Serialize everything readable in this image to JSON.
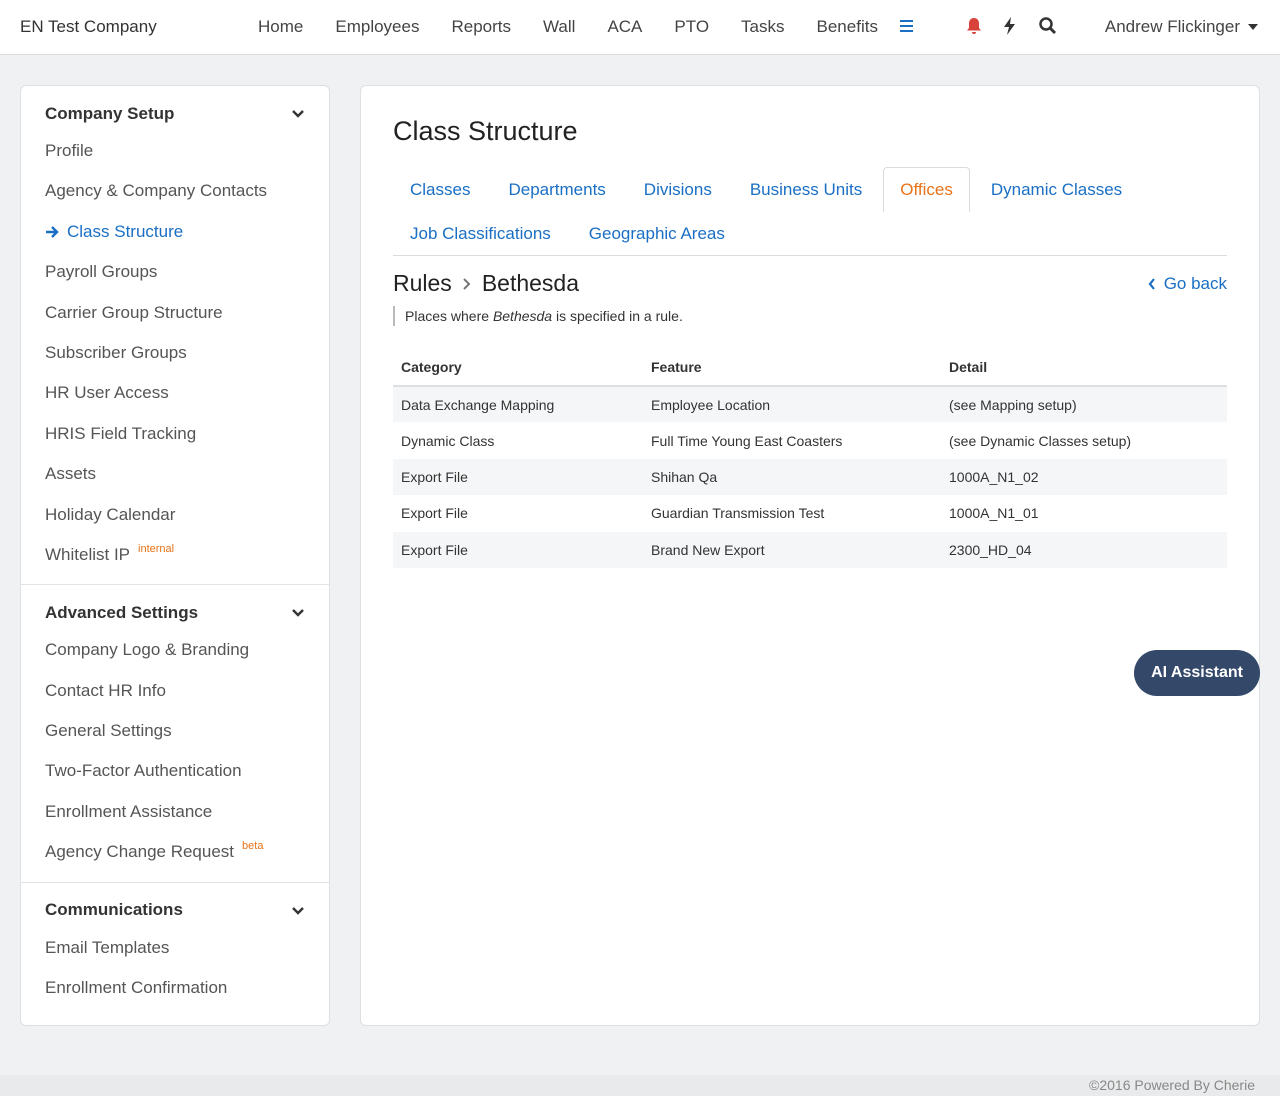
{
  "navbar": {
    "brand": "EN Test Company",
    "links": [
      "Home",
      "Employees",
      "Reports",
      "Wall",
      "ACA",
      "PTO",
      "Tasks",
      "Benefits"
    ],
    "user": "Andrew Flickinger"
  },
  "sidebar": {
    "sections": [
      {
        "title": "Company Setup",
        "items": [
          {
            "label": "Profile"
          },
          {
            "label": "Agency & Company Contacts"
          },
          {
            "label": "Class Structure",
            "active": true
          },
          {
            "label": "Payroll Groups"
          },
          {
            "label": "Carrier Group Structure"
          },
          {
            "label": "Subscriber Groups"
          },
          {
            "label": "HR User Access"
          },
          {
            "label": "HRIS Field Tracking"
          },
          {
            "label": "Assets"
          },
          {
            "label": "Holiday Calendar"
          },
          {
            "label": "Whitelist IP",
            "badge": "internal"
          }
        ]
      },
      {
        "title": "Advanced Settings",
        "items": [
          {
            "label": "Company Logo & Branding"
          },
          {
            "label": "Contact HR Info"
          },
          {
            "label": "General Settings"
          },
          {
            "label": "Two-Factor Authentication"
          },
          {
            "label": "Enrollment Assistance"
          },
          {
            "label": "Agency Change Request",
            "badge": "beta"
          }
        ]
      },
      {
        "title": "Communications",
        "items": [
          {
            "label": "Email Templates"
          },
          {
            "label": "Enrollment Confirmation"
          }
        ]
      }
    ]
  },
  "main": {
    "title": "Class Structure",
    "tabs": [
      {
        "label": "Classes"
      },
      {
        "label": "Departments"
      },
      {
        "label": "Divisions"
      },
      {
        "label": "Business Units"
      },
      {
        "label": "Offices",
        "active": true
      },
      {
        "label": "Dynamic Classes"
      },
      {
        "label": "Job Classifications"
      },
      {
        "label": "Geographic Areas"
      }
    ],
    "breadcrumb": [
      "Rules",
      "Bethesda"
    ],
    "go_back": "Go back",
    "note": {
      "before": "Places where",
      "emphasis": "Bethesda",
      "after": "is specified in a rule."
    },
    "table": {
      "columns": [
        "Category",
        "Feature",
        "Detail"
      ],
      "rows": [
        [
          "Data Exchange Mapping",
          "Employee Location",
          "(see Mapping setup)"
        ],
        [
          "Dynamic Class",
          "Full Time Young East Coasters",
          "(see Dynamic Classes setup)"
        ],
        [
          "Export File",
          "Shihan Qa",
          "1000A_N1_02"
        ],
        [
          "Export File",
          "Guardian Transmission Test",
          "1000A_N1_01"
        ],
        [
          "Export File",
          "Brand New Export",
          "2300_HD_04"
        ]
      ]
    }
  },
  "ai_button": "AI Assistant",
  "footer": "©2016 Powered By Cherie"
}
